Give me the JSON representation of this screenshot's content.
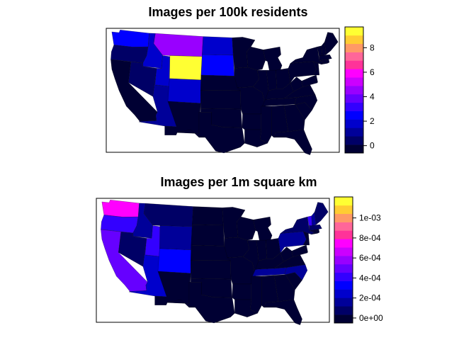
{
  "palette": [
    "#000033",
    "#000066",
    "#000099",
    "#0000CC",
    "#0000FF",
    "#3300FF",
    "#6600FF",
    "#9900FF",
    "#CC00FF",
    "#FF00FF",
    "#FF3399",
    "#FF6699",
    "#FF9966",
    "#FFCC33",
    "#FFFF33"
  ],
  "maps": [
    {
      "title": "Images per 100k residents",
      "legend": {
        "ticks": [
          {
            "label": "0",
            "value": 0
          },
          {
            "label": "2",
            "value": 2
          },
          {
            "label": "4",
            "value": 4
          },
          {
            "label": "6",
            "value": 6
          },
          {
            "label": "8",
            "value": 8
          }
        ],
        "range": [
          -0.6,
          9.7
        ]
      },
      "highlights": {
        "WY": 9.6,
        "MT": 4.6,
        "WA": 2.5,
        "ND": 1.5,
        "SD": 2.8,
        "ID": 1.9,
        "UT": 2.1,
        "CO": 1.9,
        "AZ": 1.1,
        "NV": 0.5,
        "OR": 0.6
      }
    },
    {
      "title": "Images per 1m square km",
      "legend": {
        "ticks": [
          {
            "label": "0e+00",
            "value": 0
          },
          {
            "label": "2e-04",
            "value": 0.0002
          },
          {
            "label": "4e-04",
            "value": 0.0004
          },
          {
            "label": "6e-04",
            "value": 0.0006
          },
          {
            "label": "8e-04",
            "value": 0.0008
          },
          {
            "label": "1e-03",
            "value": 0.001
          }
        ],
        "range": [
          -5e-05,
          0.00121
        ]
      },
      "highlights": {
        "WA": 0.00075,
        "OR": 0.00043,
        "CA": 0.0005,
        "NV": 7e-05,
        "UT": 0.00038,
        "CO": 0.00036,
        "AZ": 0.00023,
        "WY": 0.00013,
        "MT": 0.00011,
        "ID": 0.00013,
        "TN": 0.00017,
        "NC": 0.00015,
        "PA": 0.00015,
        "NY": 0.0001,
        "VT": 0.00042,
        "NH": 0.0002,
        "MA": 0.0001,
        "ME": 6e-05
      }
    }
  ]
}
